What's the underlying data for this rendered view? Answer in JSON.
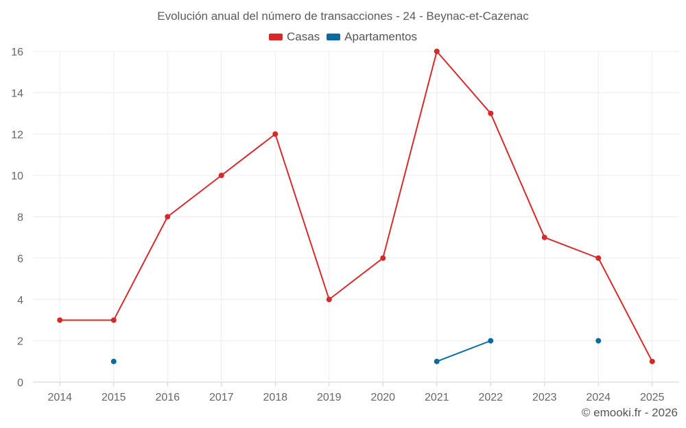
{
  "chart_data": {
    "type": "line",
    "title": "Evolución anual del número de transacciones - 24 - Beynac-et-Cazenac",
    "categories": [
      "2014",
      "2015",
      "2016",
      "2017",
      "2018",
      "2019",
      "2020",
      "2021",
      "2022",
      "2023",
      "2024",
      "2025"
    ],
    "ylim": [
      0,
      16
    ],
    "yticks": [
      0,
      2,
      4,
      6,
      8,
      10,
      12,
      14,
      16
    ],
    "grid": true,
    "legend_position": "top-center",
    "series": [
      {
        "name": "Casas",
        "color": "#d42a2a",
        "values": [
          3,
          3,
          8,
          10,
          12,
          4,
          6,
          16,
          13,
          7,
          6,
          1
        ]
      },
      {
        "name": "Apartamentos",
        "color": "#0d6aa0",
        "values": [
          null,
          1,
          null,
          null,
          null,
          null,
          null,
          1,
          2,
          null,
          2,
          null
        ]
      }
    ]
  },
  "credit": "© emooki.fr - 2026"
}
